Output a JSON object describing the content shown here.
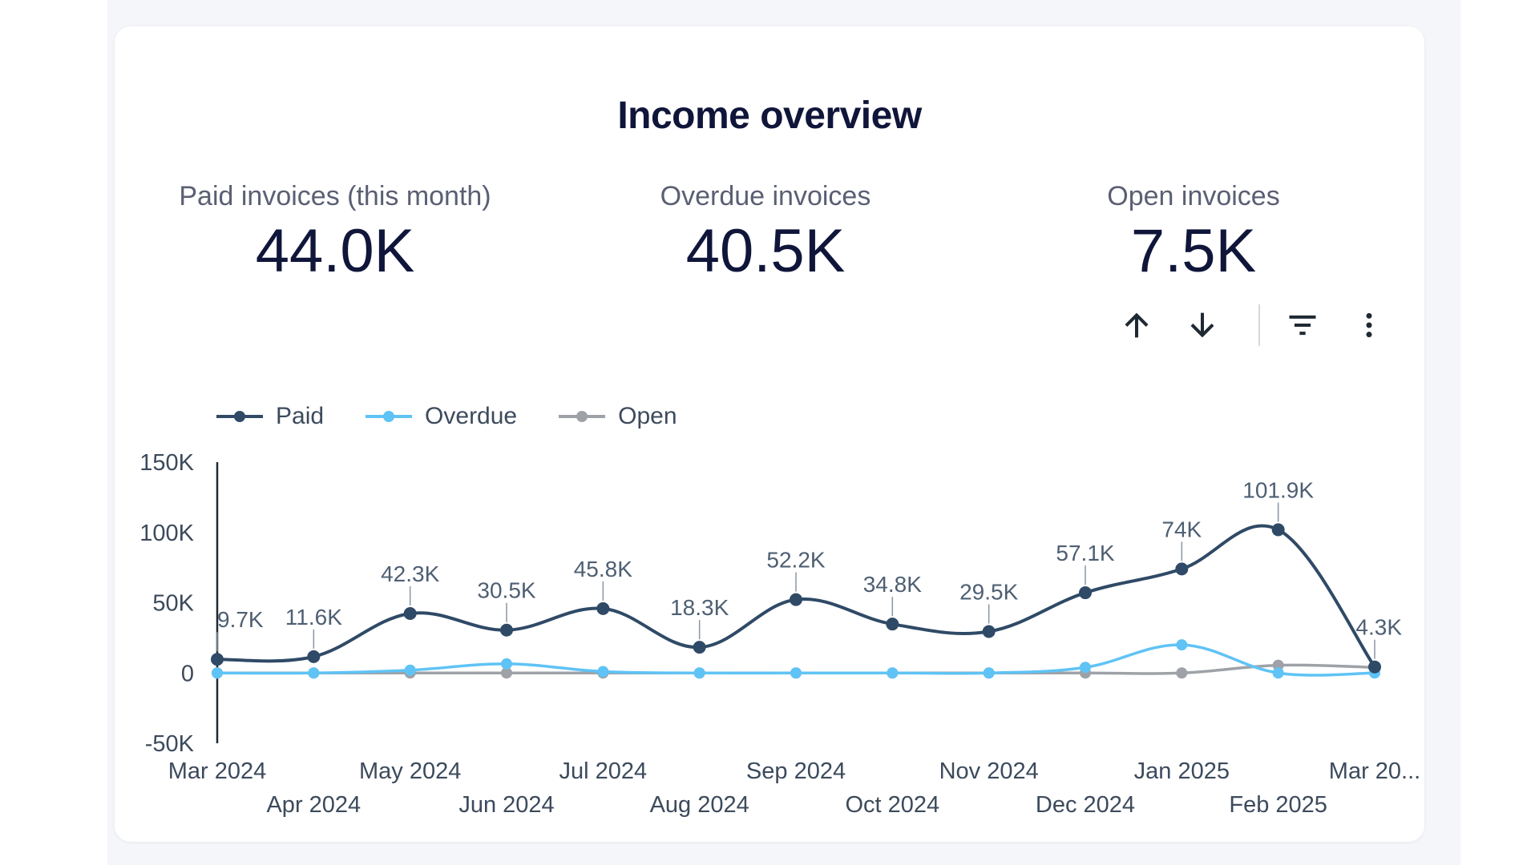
{
  "card": {
    "title": "Income overview"
  },
  "kpis": [
    {
      "label": "Paid invoices (this month)",
      "value": "44.0K"
    },
    {
      "label": "Overdue invoices",
      "value": "40.5K"
    },
    {
      "label": "Open invoices",
      "value": "7.5K"
    }
  ],
  "toolbar": {
    "icons": [
      "arrow-up-icon",
      "arrow-down-icon",
      "filter-icon",
      "more-vert-icon"
    ]
  },
  "colors": {
    "paid": "#2f4a66",
    "overdue": "#5fc3f5",
    "open": "#9ea2a8",
    "axis": "#1f2933"
  },
  "legend": [
    {
      "name": "Paid",
      "series_key": "paid"
    },
    {
      "name": "Overdue",
      "series_key": "overdue"
    },
    {
      "name": "Open",
      "series_key": "open"
    }
  ],
  "chart_data": {
    "type": "line",
    "title": "",
    "xlabel": "",
    "ylabel": "",
    "ylim": [
      -50000,
      150000
    ],
    "yticks": [
      150000,
      100000,
      50000,
      0,
      -50000
    ],
    "ytick_labels": [
      "150K",
      "100K",
      "50K",
      "0",
      "-50K"
    ],
    "categories": [
      "Mar 2024",
      "Apr 2024",
      "May 2024",
      "Jun 2024",
      "Jul 2024",
      "Aug 2024",
      "Sep 2024",
      "Oct 2024",
      "Nov 2024",
      "Dec 2024",
      "Jan 2025",
      "Feb 2025",
      "Mar 20..."
    ],
    "series": [
      {
        "name": "Paid",
        "key": "paid",
        "values": [
          9700,
          11600,
          42300,
          30500,
          45800,
          18300,
          52200,
          34800,
          29500,
          57100,
          74000,
          101900,
          4300
        ],
        "labels": [
          "9.7K",
          "11.6K",
          "42.3K",
          "30.5K",
          "45.8K",
          "18.3K",
          "52.2K",
          "34.8K",
          "29.5K",
          "57.1K",
          "74K",
          "101.9K",
          "4.3K"
        ]
      },
      {
        "name": "Overdue",
        "key": "overdue",
        "values": [
          0,
          0,
          2000,
          6500,
          1000,
          0,
          0,
          0,
          0,
          4000,
          20000,
          0,
          0
        ]
      },
      {
        "name": "Open",
        "key": "open",
        "values": [
          0,
          0,
          0,
          0,
          0,
          0,
          0,
          0,
          0,
          0,
          0,
          5500,
          4000
        ]
      }
    ]
  }
}
